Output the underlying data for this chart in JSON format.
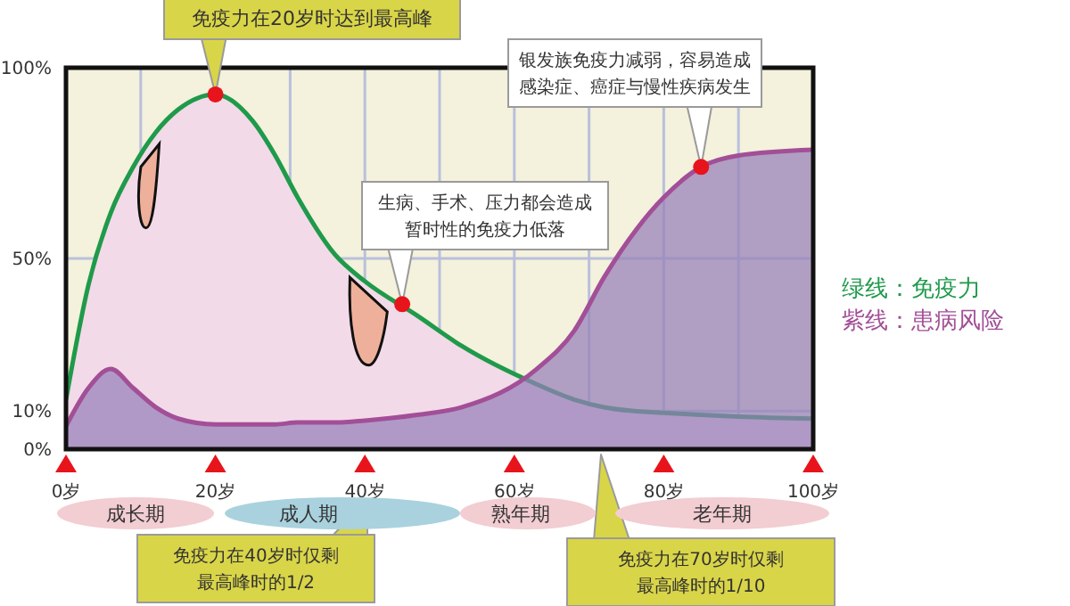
{
  "chart_data": {
    "type": "area",
    "x": [
      0,
      3,
      6,
      9,
      12,
      15,
      20,
      25,
      28,
      31,
      36,
      40,
      47,
      53,
      63,
      68,
      72,
      80,
      85,
      90,
      100
    ],
    "series": [
      {
        "name": "绿线：免疫力",
        "color": "#1f9a4b",
        "values": [
          13,
          43,
          62,
          74,
          83,
          89,
          93,
          86,
          77,
          66,
          51,
          44,
          35,
          27,
          17,
          13,
          11,
          9.5,
          9,
          8.5,
          8
        ]
      },
      {
        "name": "紫线：患病风险",
        "color": "#a24f98",
        "values": [
          6,
          16,
          21,
          16,
          11,
          8,
          6.5,
          6.5,
          6.5,
          7,
          7,
          7.5,
          9,
          11,
          21,
          31,
          45,
          66,
          74,
          77,
          78.5
        ]
      }
    ],
    "xlim": [
      0,
      100
    ],
    "xticks": [
      {
        "value": 0,
        "label": "0岁"
      },
      {
        "value": 10,
        "label": null
      },
      {
        "value": 20,
        "label": "20岁"
      },
      {
        "value": 30,
        "label": null
      },
      {
        "value": 40,
        "label": "40岁"
      },
      {
        "value": 50,
        "label": null
      },
      {
        "value": 60,
        "label": "60岁"
      },
      {
        "value": 70,
        "label": null
      },
      {
        "value": 80,
        "label": "80岁"
      },
      {
        "value": 90,
        "label": null
      },
      {
        "value": 100,
        "label": "100岁"
      }
    ],
    "ylim": [
      0,
      100
    ],
    "yticks": [
      {
        "value": 0,
        "label": "0%"
      },
      {
        "value": 10,
        "label": "10%"
      },
      {
        "value": 50,
        "label": "50%"
      },
      {
        "value": 100,
        "label": "100%"
      }
    ],
    "grid": true,
    "legend": "right",
    "annotations": [
      {
        "text": "免疫力在20岁时达到最高峰",
        "x": 20,
        "y": 93
      },
      {
        "text": "银发族免疫力减弱，容易造成感染症、癌症与慢性疾病发生",
        "x": 85,
        "y": 74
      },
      {
        "text": "生病、手术、压力都会造成暂时性的免疫力低落",
        "x": 45,
        "y": 38
      },
      "免疫力在40岁时仅剩最高峰时的1/2",
      "免疫力在70岁时仅剩最高峰时的1/10",
      "成长期",
      "成人期",
      "熟年期",
      "老年期"
    ]
  }
}
